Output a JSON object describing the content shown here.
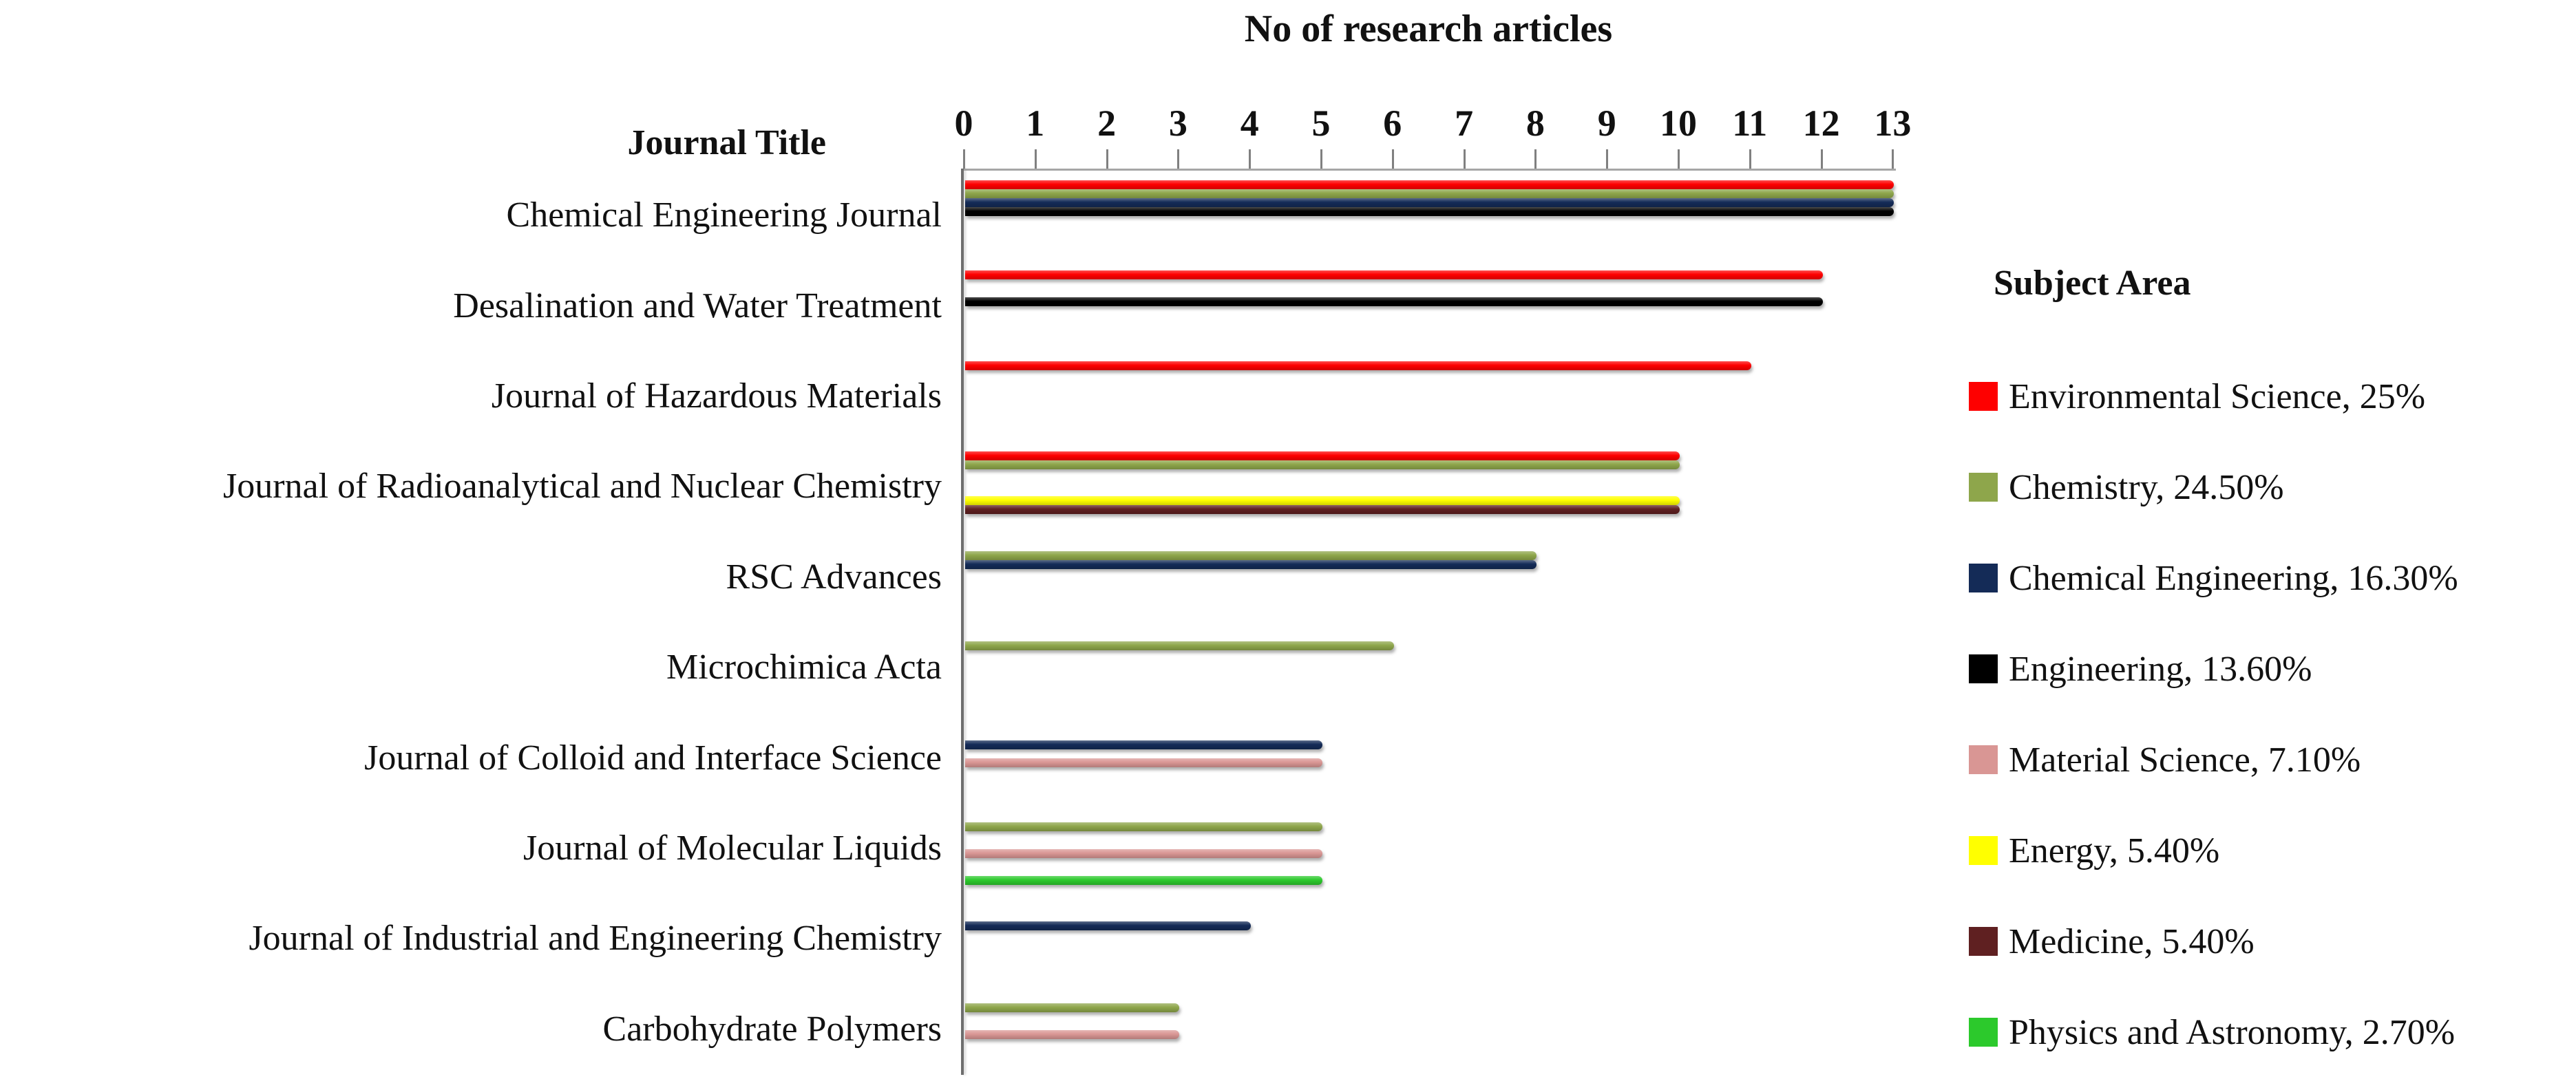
{
  "chart_data": {
    "type": "bar",
    "orientation": "horizontal",
    "title": "No of research articles",
    "category_axis_label": "Journal Title",
    "legend_title": "Subject Area",
    "xlim": [
      0,
      13
    ],
    "x_ticks": [
      0,
      1,
      2,
      3,
      4,
      5,
      6,
      7,
      8,
      9,
      10,
      11,
      12,
      13
    ],
    "grid": false,
    "legend_position": "right",
    "categories": [
      "Chemical Engineering Journal",
      "Desalination and Water Treatment",
      "Journal of Hazardous Materials",
      "Journal of Radioanalytical and Nuclear Chemistry",
      "RSC Advances",
      "Microchimica Acta",
      "Journal of Colloid and Interface Science",
      "Journal of Molecular Liquids",
      "Journal of Industrial and Engineering Chemistry",
      "Carbohydrate Polymers"
    ],
    "series": [
      {
        "name": "Environmental Science",
        "legend_label": "Environmental Science, 25%",
        "percentage": "25%",
        "color": "#FE0000",
        "values": [
          13,
          12,
          11,
          10,
          null,
          null,
          null,
          null,
          null,
          null
        ]
      },
      {
        "name": "Chemistry",
        "legend_label": "Chemistry, 24.50%",
        "percentage": "24.50%",
        "color": "#8EA64B",
        "values": [
          13,
          null,
          null,
          10,
          8,
          6,
          null,
          5,
          null,
          3
        ]
      },
      {
        "name": "Chemical Engineering",
        "legend_label": "Chemical Engineering, 16.30%",
        "percentage": "16.30%",
        "color": "#142B57",
        "values": [
          13,
          null,
          null,
          null,
          8,
          null,
          5,
          null,
          4,
          null
        ]
      },
      {
        "name": "Engineering",
        "legend_label": "Engineering, 13.60%",
        "percentage": "13.60%",
        "color": "#000000",
        "values": [
          13,
          12,
          null,
          null,
          null,
          null,
          null,
          null,
          null,
          null
        ]
      },
      {
        "name": "Material Science",
        "legend_label": "Material Science, 7.10%",
        "percentage": "7.10%",
        "color": "#D99694",
        "values": [
          null,
          null,
          null,
          null,
          null,
          null,
          5,
          5,
          null,
          3
        ]
      },
      {
        "name": "Energy",
        "legend_label": "Energy, 5.40%",
        "percentage": "5.40%",
        "color": "#FFFF00",
        "values": [
          null,
          null,
          null,
          10,
          null,
          null,
          null,
          null,
          null,
          null
        ]
      },
      {
        "name": "Medicine",
        "legend_label": "Medicine, 5.40%",
        "percentage": "5.40%",
        "color": "#5F2021",
        "values": [
          null,
          null,
          null,
          10,
          null,
          null,
          null,
          null,
          null,
          null
        ]
      },
      {
        "name": "Physics and Astronomy",
        "legend_label": "Physics and Astronomy, 2.70%",
        "percentage": "2.70%",
        "color": "#2CC92C",
        "values": [
          null,
          null,
          null,
          null,
          null,
          null,
          null,
          5,
          null,
          null
        ]
      }
    ]
  }
}
